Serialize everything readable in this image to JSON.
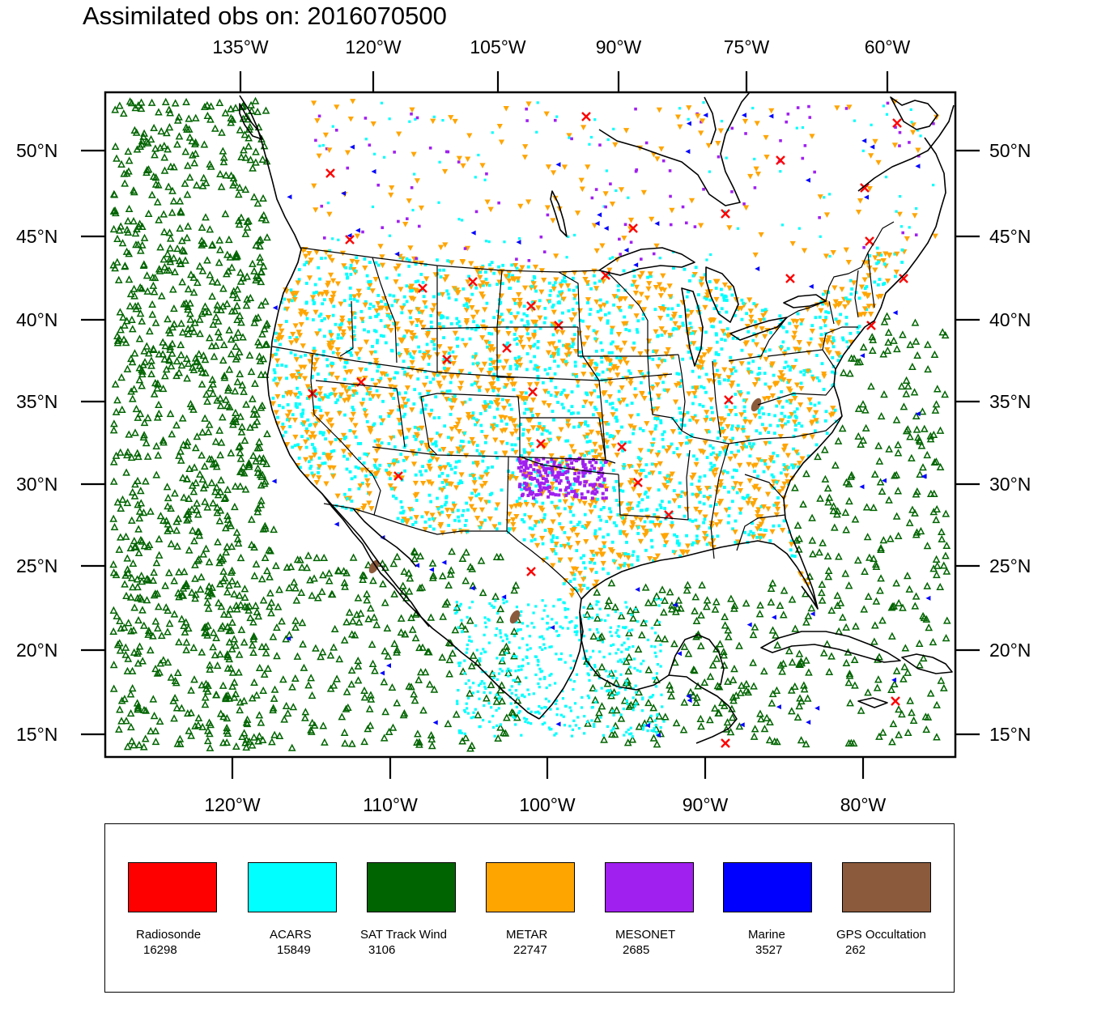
{
  "title": "Assimilated obs on: 2016070500",
  "map": {
    "top_lon_labels": [
      "135°W",
      "120°W",
      "105°W",
      "90°W",
      "75°W",
      "60°W"
    ],
    "bottom_lon_labels": [
      "120°W",
      "110°W",
      "100°W",
      "90°W",
      "80°W"
    ],
    "lat_labels": [
      "50°N",
      "45°N",
      "40°N",
      "35°N",
      "30°N",
      "25°N",
      "20°N",
      "15°N"
    ]
  },
  "legend": [
    {
      "name": "Radiosonde",
      "count": "16298",
      "color": "#ff0000"
    },
    {
      "name": "ACARS",
      "count": "15849",
      "color": "#00ffff"
    },
    {
      "name": "SAT Track Wind",
      "count": "3106",
      "color": "#006400"
    },
    {
      "name": "METAR",
      "count": "22747",
      "color": "#ffa500"
    },
    {
      "name": "MESONET",
      "count": "2685",
      "color": "#a020f0"
    },
    {
      "name": "Marine",
      "count": "3527",
      "color": "#0000ff"
    },
    {
      "name": "GPS Occultation",
      "count": "262",
      "color": "#8b5a3c"
    }
  ]
}
